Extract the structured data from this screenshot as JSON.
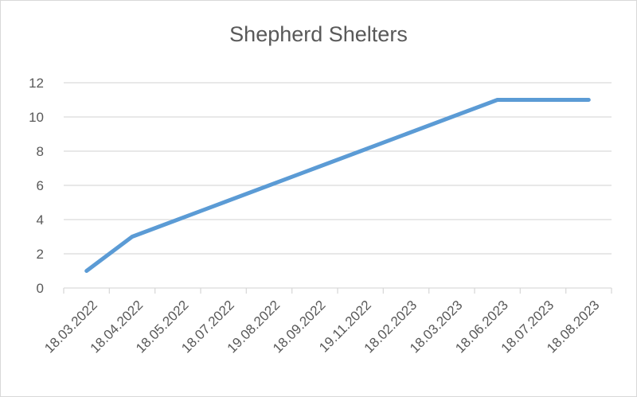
{
  "chart_data": {
    "type": "line",
    "title": "Shepherd Shelters",
    "xlabel": "",
    "ylabel": "",
    "categories": [
      "18.03.2022",
      "18.04.2022",
      "18.05.2022",
      "18.07.2022",
      "19.08.2022",
      "18.09.2022",
      "19.11.2022",
      "18.02.2023",
      "18.03.2023",
      "18.06.2023",
      "18.07.2023",
      "18.08.2023"
    ],
    "series": [
      {
        "name": "Shepherd Shelters",
        "values": [
          1,
          3,
          4,
          5,
          6,
          7,
          8,
          9,
          10,
          11,
          11,
          11
        ],
        "color": "#5B9BD5"
      }
    ],
    "ylim": [
      0,
      12
    ],
    "yticks": [
      0,
      2,
      4,
      6,
      8,
      10,
      12
    ],
    "grid": true,
    "legend": "none"
  }
}
